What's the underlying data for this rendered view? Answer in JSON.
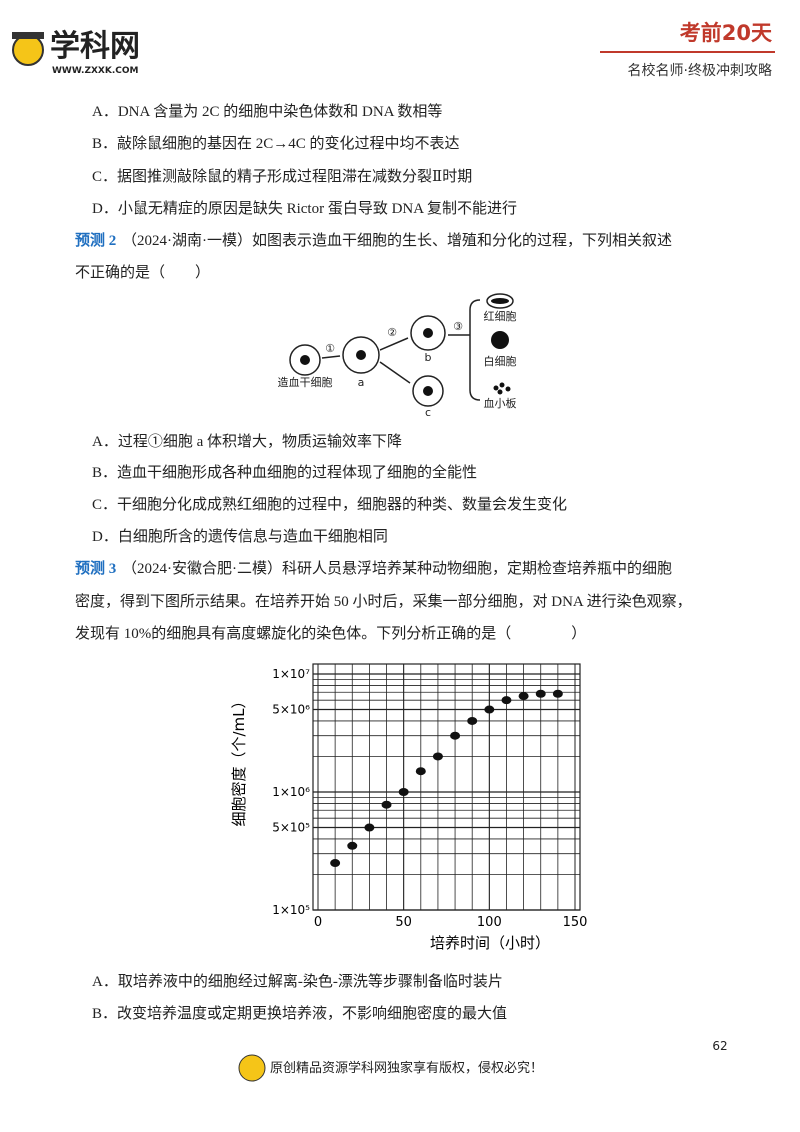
{
  "header": {
    "logo": "学科网",
    "site": "WWW.ZXXK.COM",
    "badge": "考前20天",
    "slogan": "名校名师·终极冲刺攻略"
  },
  "q1_options": [
    "A．DNA 含量为 2C 的细胞中染色体数和 DNA 数相等",
    "B．敲除鼠细胞的基因在 2C→4C 的变化过程中均不表达",
    "C．据图推测敲除鼠的精子形成过程阻滞在减数分裂Ⅱ时期",
    "D．小鼠无精症的原因是缺失 Rictor 蛋白导致 DNA 复制不能进行"
  ],
  "q2": {
    "label": "预测 2",
    "lines": [
      "（2024·湖南·一模）如图表示造血干细胞的生长、增殖和分化的过程，下列相关叙述",
      "不正确的是（　　）"
    ],
    "diagram": {
      "stem": "造血干细胞",
      "a": "a",
      "b": "b",
      "c": "c",
      "step1": "①",
      "step2": "②",
      "step3": "③",
      "rbc": "红细胞",
      "wbc": "白细胞",
      "platelet": "血小板"
    },
    "options": [
      "A．过程①细胞 a 体积增大，物质运输效率下降",
      "B．造血干细胞形成各种血细胞的过程体现了细胞的全能性",
      "C．干细胞分化成成熟红细胞的过程中，细胞器的种类、数量会发生变化",
      "D．白细胞所含的遗传信息与造血干细胞相同"
    ]
  },
  "q3": {
    "label": "预测 3",
    "lines": [
      "（2024·安徽合肥·二模）科研人员悬浮培养某种动物细胞，定期检查培养瓶中的细胞",
      "密度，得到下图所示结果。在培养开始 50 小时后，采集一部分细胞，对 DNA 进行染色观察，",
      "发现有 10%的细胞具有高度螺旋化的染色体。下列分析正确的是（　　　　）"
    ],
    "options": [
      "A．取培养液中的细胞经过解离-染色-漂洗等步骤制备临时装片",
      "B．改变培养温度或定期更换培养液，不影响细胞密度的最大值"
    ]
  },
  "chart_data": {
    "type": "scatter",
    "xlabel": "培养时间（小时）",
    "ylabel": "细胞密度（个/mL）",
    "x": [
      10,
      20,
      30,
      40,
      50,
      60,
      70,
      80,
      90,
      100,
      110,
      120,
      130,
      140
    ],
    "values": [
      250000,
      350000,
      500000,
      780000,
      1000000,
      1500000,
      2000000,
      3000000,
      4000000,
      5000000,
      6000000,
      6500000,
      6800000,
      6800000
    ],
    "color": "#111111",
    "xlim": [
      0,
      150
    ],
    "xticks": [
      0,
      50,
      100,
      150
    ],
    "ylim": [
      100000,
      10000000
    ],
    "log_y": true,
    "grid": true,
    "yticks": [
      {
        "value": 100000,
        "label": "1×10⁵"
      },
      {
        "value": 500000,
        "label": "5×10⁵"
      },
      {
        "value": 1000000,
        "label": "1×10⁶"
      },
      {
        "value": 5000000,
        "label": "5×10⁶"
      },
      {
        "value": 10000000,
        "label": "1×10⁷"
      }
    ]
  },
  "page_number": "62",
  "footer": "原创精品资源学科网独家享有版权，侵权必究！"
}
